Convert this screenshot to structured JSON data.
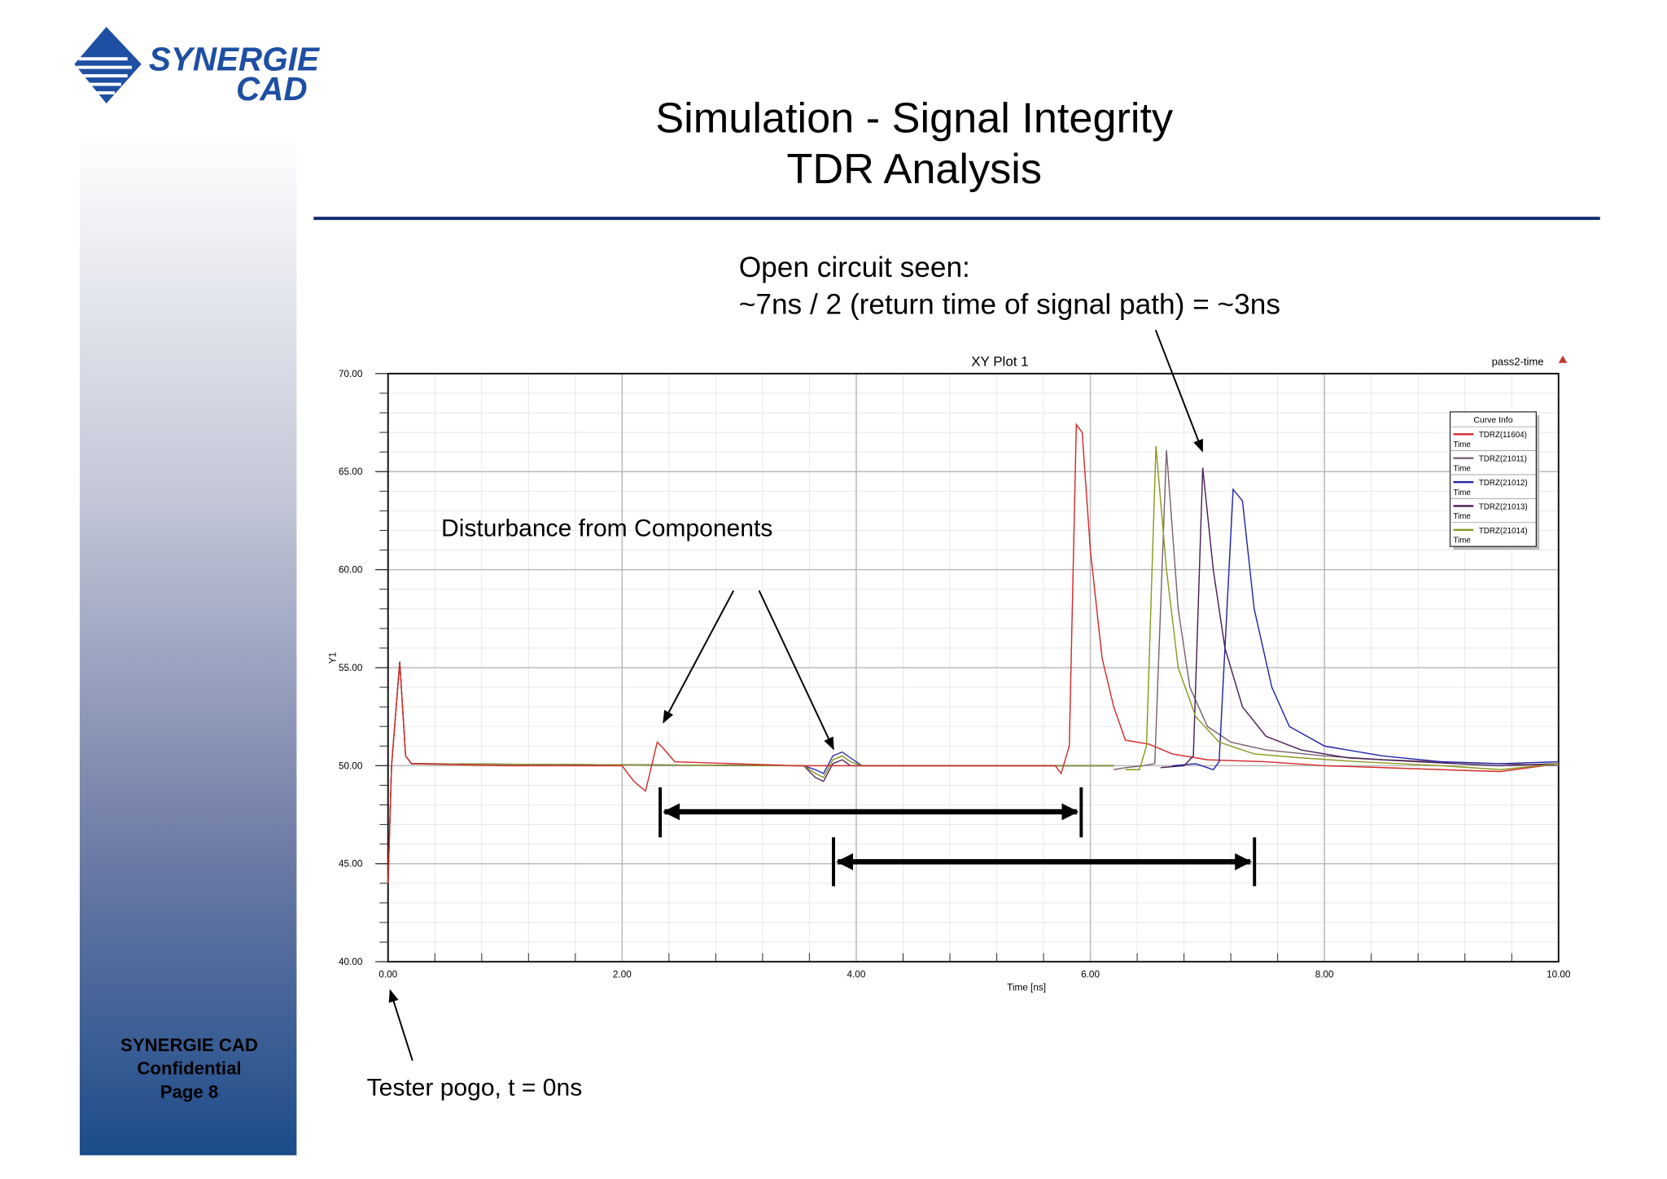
{
  "logo": {
    "line1": "SYNERGIE",
    "line2": "CAD"
  },
  "slide": {
    "title_line1": "Simulation - Signal Integrity",
    "title_line2": "TDR Analysis",
    "rule_color": "#0d2a6b",
    "footer": {
      "company": "SYNERGIE CAD",
      "confidential": "Confidential",
      "page": "Page 8"
    }
  },
  "annotations": {
    "open_circuit_line1": "Open circuit seen:",
    "open_circuit_line2": "~7ns / 2 (return time of signal path) = ~3ns",
    "disturbance": "Disturbance from Components",
    "tester_pogo": "Tester pogo, t = 0ns"
  },
  "chart_data": {
    "type": "line",
    "title": "XY Plot 1",
    "corner_label": "pass2-time",
    "corner_logo": "ANSOFT",
    "xlabel": "Time [ns]",
    "ylabel": "Y1",
    "xlim": [
      0,
      10
    ],
    "ylim": [
      40,
      70
    ],
    "x_ticks": [
      "0.00",
      "2.00",
      "4.00",
      "6.00",
      "8.00",
      "10.00"
    ],
    "y_ticks": [
      "40.00",
      "45.00",
      "50.00",
      "55.00",
      "60.00",
      "65.00",
      "70.00"
    ],
    "grid": true,
    "legend": {
      "title": "Curve Info",
      "placement": "top-right",
      "sublabel": "Time"
    },
    "series": [
      {
        "name": "TDRZ(11604)",
        "color": "#d42a2a",
        "points": [
          [
            0,
            44
          ],
          [
            0.03,
            50
          ],
          [
            0.1,
            55.3
          ],
          [
            0.15,
            50.5
          ],
          [
            0.2,
            50.1
          ],
          [
            1,
            50
          ],
          [
            2.0,
            50
          ],
          [
            2.1,
            49.2
          ],
          [
            2.2,
            48.7
          ],
          [
            2.3,
            51.2
          ],
          [
            2.35,
            50.9
          ],
          [
            2.45,
            50.2
          ],
          [
            3.5,
            50
          ],
          [
            5.7,
            50
          ],
          [
            5.75,
            49.6
          ],
          [
            5.82,
            51
          ],
          [
            5.88,
            67.4
          ],
          [
            5.93,
            67
          ],
          [
            6.0,
            61
          ],
          [
            6.1,
            55.5
          ],
          [
            6.2,
            53
          ],
          [
            6.3,
            51.3
          ],
          [
            6.5,
            51.1
          ],
          [
            6.7,
            50.6
          ],
          [
            7.0,
            50.3
          ],
          [
            7.5,
            50.2
          ],
          [
            8.0,
            50
          ],
          [
            8.5,
            49.9
          ],
          [
            9.0,
            49.8
          ],
          [
            9.5,
            49.7
          ],
          [
            10,
            50.1
          ]
        ]
      },
      {
        "name": "TDRZ(21011)",
        "color": "#7a6272",
        "points": [
          [
            6.2,
            49.8
          ],
          [
            6.3,
            49.9
          ],
          [
            6.45,
            50
          ],
          [
            6.55,
            50.1
          ],
          [
            6.65,
            66.1
          ],
          [
            6.75,
            58
          ],
          [
            6.85,
            54
          ],
          [
            7.0,
            52
          ],
          [
            7.2,
            51.2
          ],
          [
            7.5,
            50.8
          ],
          [
            8.0,
            50.5
          ],
          [
            8.5,
            50.3
          ],
          [
            9.0,
            50.2
          ],
          [
            9.5,
            50.1
          ],
          [
            10,
            50
          ]
        ]
      },
      {
        "name": "TDRZ(21012)",
        "color": "#2424a8",
        "points": [
          [
            6.7,
            50
          ],
          [
            6.9,
            50.1
          ],
          [
            7.05,
            49.8
          ],
          [
            7.1,
            50.2
          ],
          [
            7.22,
            64.1
          ],
          [
            7.3,
            63.5
          ],
          [
            7.4,
            58
          ],
          [
            7.55,
            54
          ],
          [
            7.7,
            52
          ],
          [
            8.0,
            51
          ],
          [
            8.5,
            50.5
          ],
          [
            9.0,
            50.2
          ],
          [
            9.5,
            50.1
          ],
          [
            10,
            50.2
          ]
        ]
      },
      {
        "name": "TDRZ(21013)",
        "color": "#4a1f55",
        "points": [
          [
            6.6,
            49.9
          ],
          [
            6.8,
            50
          ],
          [
            6.88,
            50.5
          ],
          [
            6.96,
            65.2
          ],
          [
            7.05,
            60
          ],
          [
            7.15,
            56
          ],
          [
            7.3,
            53
          ],
          [
            7.5,
            51.5
          ],
          [
            7.8,
            50.8
          ],
          [
            8.2,
            50.4
          ],
          [
            8.8,
            50.2
          ],
          [
            9.5,
            50
          ],
          [
            10,
            50.1
          ]
        ]
      },
      {
        "name": "TDRZ(21014)",
        "color": "#8a9a1e",
        "points": [
          [
            6.3,
            49.8
          ],
          [
            6.42,
            49.8
          ],
          [
            6.48,
            51
          ],
          [
            6.56,
            66.3
          ],
          [
            6.65,
            60
          ],
          [
            6.75,
            55
          ],
          [
            6.9,
            52.5
          ],
          [
            7.1,
            51.2
          ],
          [
            7.4,
            50.6
          ],
          [
            7.8,
            50.4
          ],
          [
            8.3,
            50.2
          ],
          [
            9.0,
            50
          ],
          [
            9.5,
            49.8
          ],
          [
            10,
            50.1
          ]
        ]
      }
    ],
    "common_early": [
      [
        0,
        44
      ],
      [
        0.03,
        50
      ],
      [
        0.1,
        55.3
      ],
      [
        0.15,
        50.5
      ],
      [
        0.2,
        50.1
      ],
      [
        3.55,
        50
      ],
      [
        3.65,
        49.6
      ],
      [
        3.72,
        49.4
      ],
      [
        3.8,
        50.3
      ],
      [
        3.88,
        50.5
      ],
      [
        3.95,
        50.2
      ],
      [
        4.05,
        50
      ],
      [
        6.2,
        50
      ]
    ]
  },
  "arrows_color": "#000000"
}
